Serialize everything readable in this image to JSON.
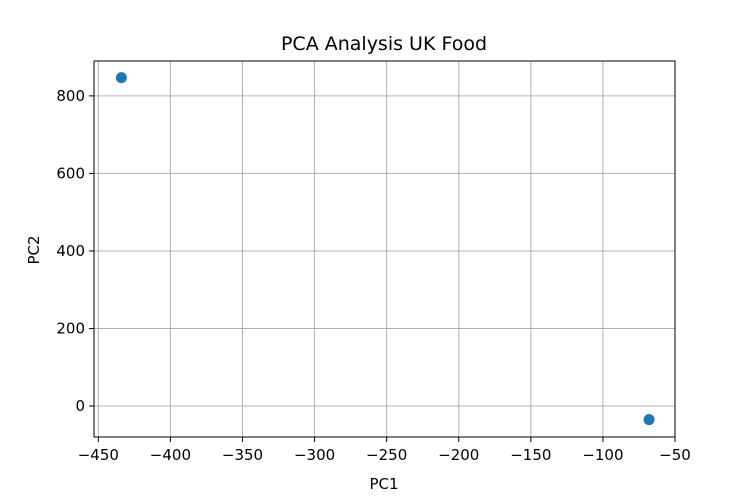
{
  "chart_data": {
    "type": "scatter",
    "title": "PCA Analysis UK Food",
    "xlabel": "PC1",
    "ylabel": "PC2",
    "xlim": [
      -453,
      -50
    ],
    "ylim": [
      -80,
      890
    ],
    "x_ticks": [
      -450,
      -400,
      -350,
      -300,
      -250,
      -200,
      -150,
      -100,
      -50
    ],
    "x_tick_labels": [
      "−450",
      "−400",
      "−350",
      "−300",
      "−250",
      "−200",
      "−150",
      "−100",
      "−50"
    ],
    "y_ticks": [
      0,
      200,
      400,
      600,
      800
    ],
    "y_tick_labels": [
      "0",
      "200",
      "400",
      "600",
      "800"
    ],
    "grid": true,
    "points": [
      {
        "x": -434,
        "y": 847
      },
      {
        "x": -68,
        "y": -35
      }
    ],
    "colors": {
      "marker": "#1f77b4",
      "grid": "#b0b0b0",
      "axes": "#000000"
    }
  }
}
